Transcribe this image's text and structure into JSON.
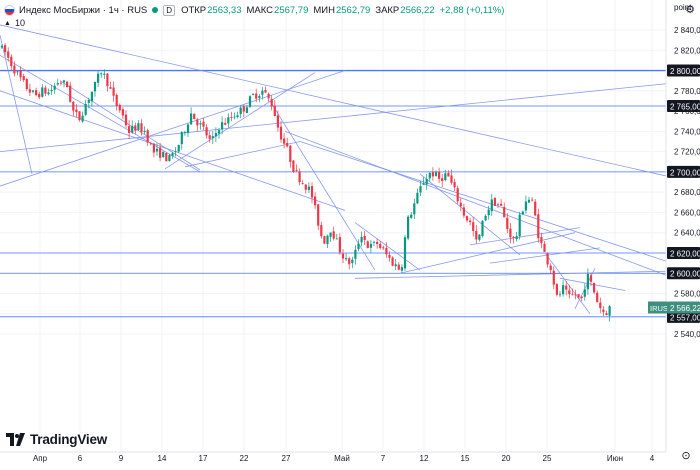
{
  "header": {
    "symbol": "Индекс МосБиржи · 1ч · RUS",
    "badge": "D",
    "open_key": "ОТКР",
    "open": "2563,33",
    "high_key": "МАКС",
    "high": "2567,79",
    "low_key": "МИН",
    "low": "2562,79",
    "close_key": "ЗАКР",
    "close": "2566,22",
    "change": "+2,88 (+0,11%)",
    "indicator_value": "10"
  },
  "branding": {
    "logo_text": "TradingView"
  },
  "colors": {
    "up": "#089981",
    "down": "#f23645",
    "levels": "#2962ff",
    "trend": "#7b8ff0",
    "badge_dark": "#131722",
    "badge_green": "#3f8f7f"
  },
  "chart_data": {
    "type": "candlestick",
    "interval": "1h",
    "currency_unit": "point",
    "ylim": [
      2530,
      2855
    ],
    "y_ticks": [
      "2 540,00",
      "2 560,00",
      "2 580,00",
      "2 600,00",
      "2 620,00",
      "2 640,00",
      "2 660,00",
      "2 680,00",
      "2 700,00",
      "2 720,00",
      "2 740,00",
      "2 760,00",
      "2 780,00",
      "2 800,00",
      "2 820,00",
      "2 840,00"
    ],
    "x_ticks": [
      "Апр",
      "6",
      "9",
      "14",
      "17",
      "22",
      "27",
      "Май",
      "7",
      "12",
      "15",
      "20",
      "25",
      "Июн",
      "4"
    ],
    "levels": [
      {
        "value": 2800,
        "label": "2 800,00"
      },
      {
        "value": 2765,
        "label": "2 765,00"
      },
      {
        "value": 2700,
        "label": "2 700,00"
      },
      {
        "value": 2620,
        "label": "2 620,00"
      },
      {
        "value": 2600,
        "label": "2 600,00"
      },
      {
        "value": 2557,
        "label": "2 557,00"
      }
    ],
    "last_price": {
      "symbol": "IRUS",
      "value": 2566.22,
      "label": "2 566,22"
    },
    "trend_lines": [
      [
        0,
        2835,
        32,
        2698
      ],
      [
        0,
        2815,
        200,
        2700
      ],
      [
        0,
        2845,
        666,
        2696
      ],
      [
        0,
        2780,
        345,
        2662
      ],
      [
        0,
        2720,
        666,
        2787
      ],
      [
        0,
        2686,
        345,
        2800
      ],
      [
        60,
        2790,
        200,
        2702
      ],
      [
        165,
        2703,
        315,
        2798
      ],
      [
        185,
        2705,
        300,
        2730
      ],
      [
        270,
        2770,
        375,
        2603
      ],
      [
        300,
        2730,
        666,
        2612
      ],
      [
        285,
        2740,
        666,
        2598
      ],
      [
        355,
        2595,
        666,
        2602
      ],
      [
        355,
        2650,
        420,
        2603
      ],
      [
        420,
        2698,
        520,
        2618
      ],
      [
        470,
        2628,
        580,
        2645
      ],
      [
        490,
        2610,
        600,
        2625
      ],
      [
        545,
        2620,
        590,
        2560
      ],
      [
        560,
        2595,
        625,
        2583
      ],
      [
        575,
        2565,
        595,
        2605
      ],
      [
        400,
        2600,
        575,
        2640
      ]
    ],
    "anchors": [
      [
        0,
        2825
      ],
      [
        8,
        2818
      ],
      [
        18,
        2800
      ],
      [
        28,
        2785
      ],
      [
        38,
        2775
      ],
      [
        46,
        2780
      ],
      [
        52,
        2778
      ],
      [
        62,
        2790
      ],
      [
        70,
        2785
      ],
      [
        76,
        2760
      ],
      [
        82,
        2752
      ],
      [
        90,
        2770
      ],
      [
        98,
        2785
      ],
      [
        104,
        2800
      ],
      [
        110,
        2790
      ],
      [
        118,
        2768
      ],
      [
        124,
        2760
      ],
      [
        132,
        2740
      ],
      [
        140,
        2745
      ],
      [
        148,
        2740
      ],
      [
        156,
        2720
      ],
      [
        164,
        2718
      ],
      [
        172,
        2712
      ],
      [
        180,
        2723
      ],
      [
        186,
        2738
      ],
      [
        194,
        2758
      ],
      [
        200,
        2750
      ],
      [
        208,
        2740
      ],
      [
        214,
        2728
      ],
      [
        222,
        2745
      ],
      [
        230,
        2750
      ],
      [
        238,
        2757
      ],
      [
        246,
        2762
      ],
      [
        256,
        2775
      ],
      [
        266,
        2780
      ],
      [
        276,
        2765
      ],
      [
        282,
        2740
      ],
      [
        290,
        2722
      ],
      [
        298,
        2700
      ],
      [
        306,
        2690
      ],
      [
        314,
        2680
      ],
      [
        320,
        2655
      ],
      [
        326,
        2630
      ],
      [
        334,
        2645
      ],
      [
        342,
        2625
      ],
      [
        350,
        2610
      ],
      [
        356,
        2612
      ],
      [
        364,
        2640
      ],
      [
        372,
        2625
      ],
      [
        380,
        2630
      ],
      [
        388,
        2620
      ],
      [
        396,
        2610
      ],
      [
        404,
        2603
      ],
      [
        410,
        2650
      ],
      [
        418,
        2670
      ],
      [
        426,
        2690
      ],
      [
        434,
        2700
      ],
      [
        442,
        2693
      ],
      [
        450,
        2698
      ],
      [
        458,
        2680
      ],
      [
        466,
        2660
      ],
      [
        474,
        2648
      ],
      [
        480,
        2628
      ],
      [
        488,
        2658
      ],
      [
        496,
        2672
      ],
      [
        504,
        2665
      ],
      [
        510,
        2645
      ],
      [
        518,
        2630
      ],
      [
        524,
        2660
      ],
      [
        530,
        2675
      ],
      [
        536,
        2668
      ],
      [
        542,
        2635
      ],
      [
        548,
        2618
      ],
      [
        554,
        2605
      ],
      [
        560,
        2575
      ],
      [
        566,
        2585
      ],
      [
        572,
        2575
      ],
      [
        578,
        2580
      ],
      [
        584,
        2572
      ],
      [
        590,
        2598
      ],
      [
        596,
        2585
      ],
      [
        602,
        2568
      ],
      [
        608,
        2560
      ],
      [
        612,
        2566
      ]
    ]
  }
}
